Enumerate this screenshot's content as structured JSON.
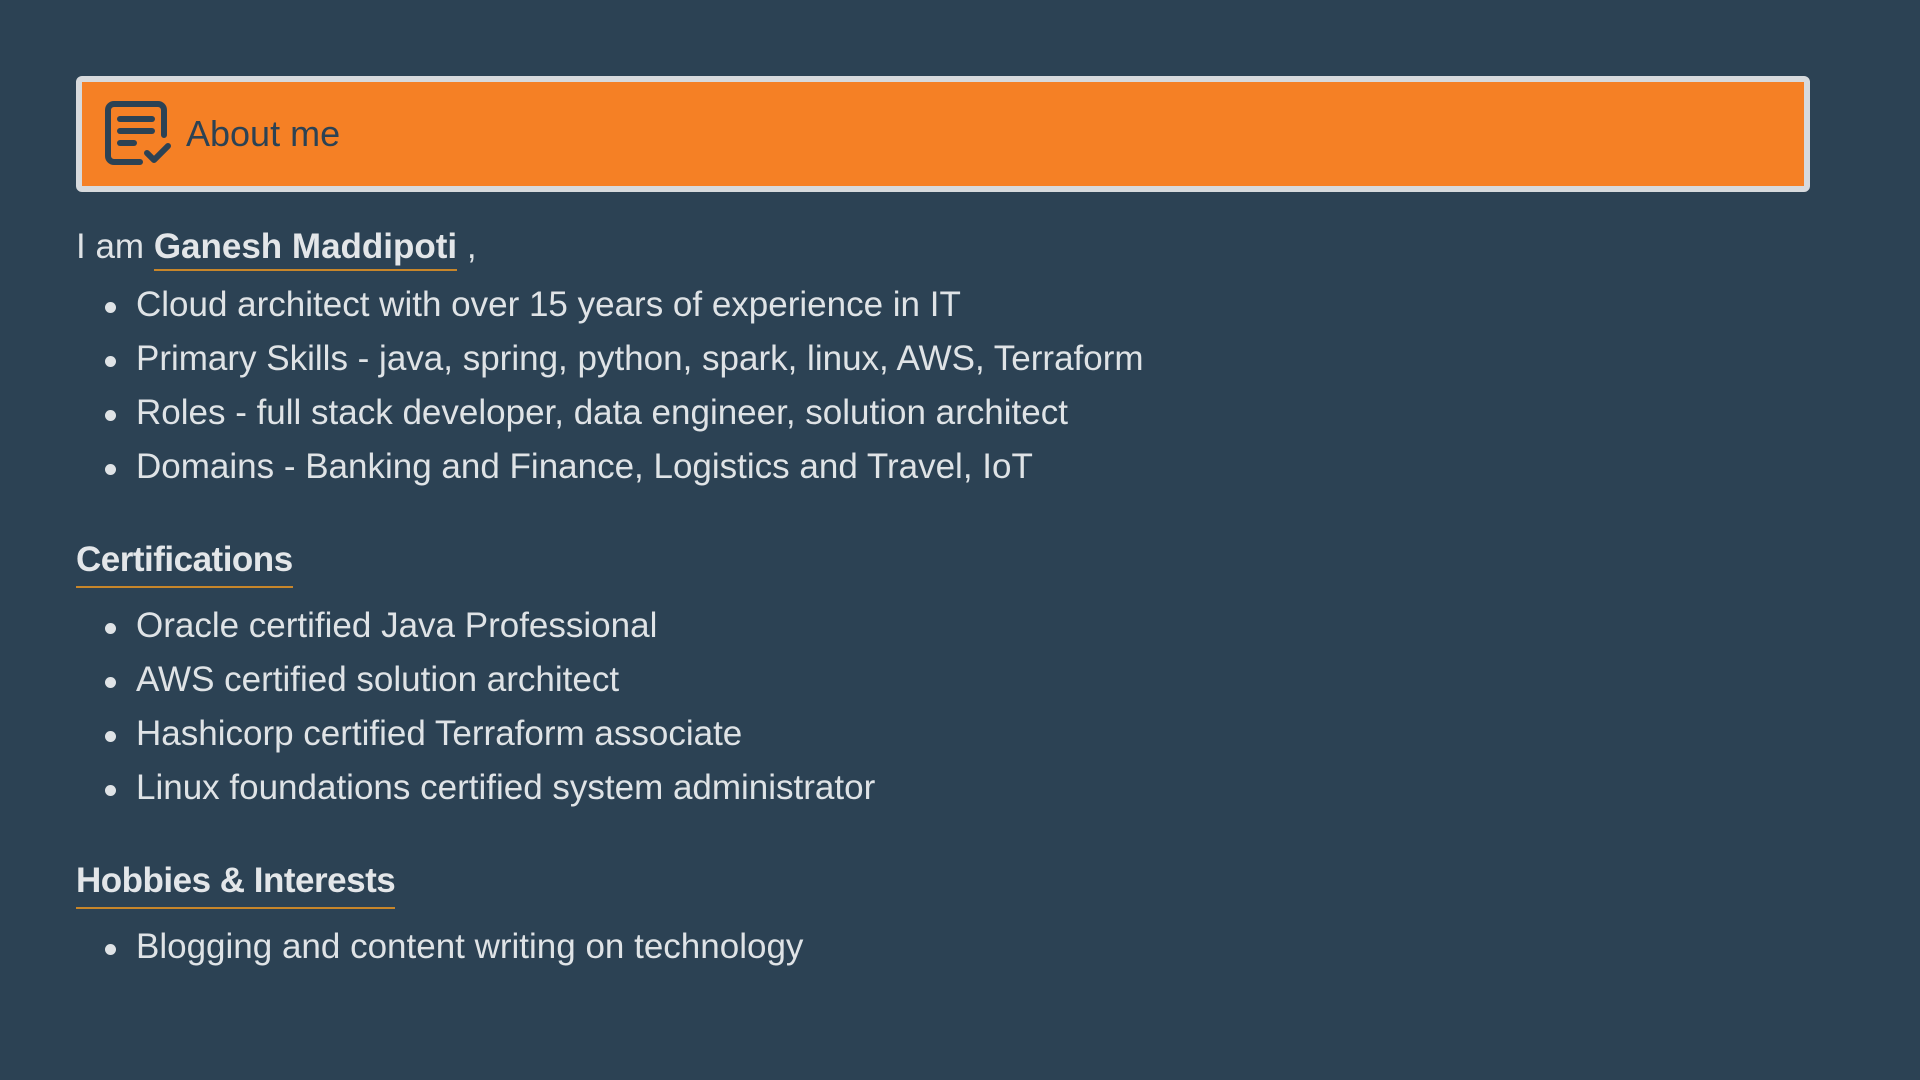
{
  "header": {
    "icon": "document-check-icon",
    "title": "About me",
    "accent_color": "#f58025"
  },
  "intro": {
    "prefix": "I am",
    "name": "Ganesh Maddipoti",
    "suffix": ","
  },
  "about_items": [
    "Cloud architect with over 15 years of experience in IT",
    "Primary Skills - java, spring, python, spark, linux, AWS, Terraform",
    "Roles - full stack developer, data engineer, solution architect",
    "Domains - Banking and Finance, Logistics and Travel, IoT"
  ],
  "certifications": {
    "title": "Certifications",
    "items": [
      "Oracle certified Java Professional",
      "AWS certified solution architect",
      "Hashicorp certified Terraform associate",
      "Linux foundations certified system administrator"
    ]
  },
  "hobbies": {
    "title": "Hobbies & Interests",
    "items": [
      "Blogging and content writing on technology"
    ]
  }
}
